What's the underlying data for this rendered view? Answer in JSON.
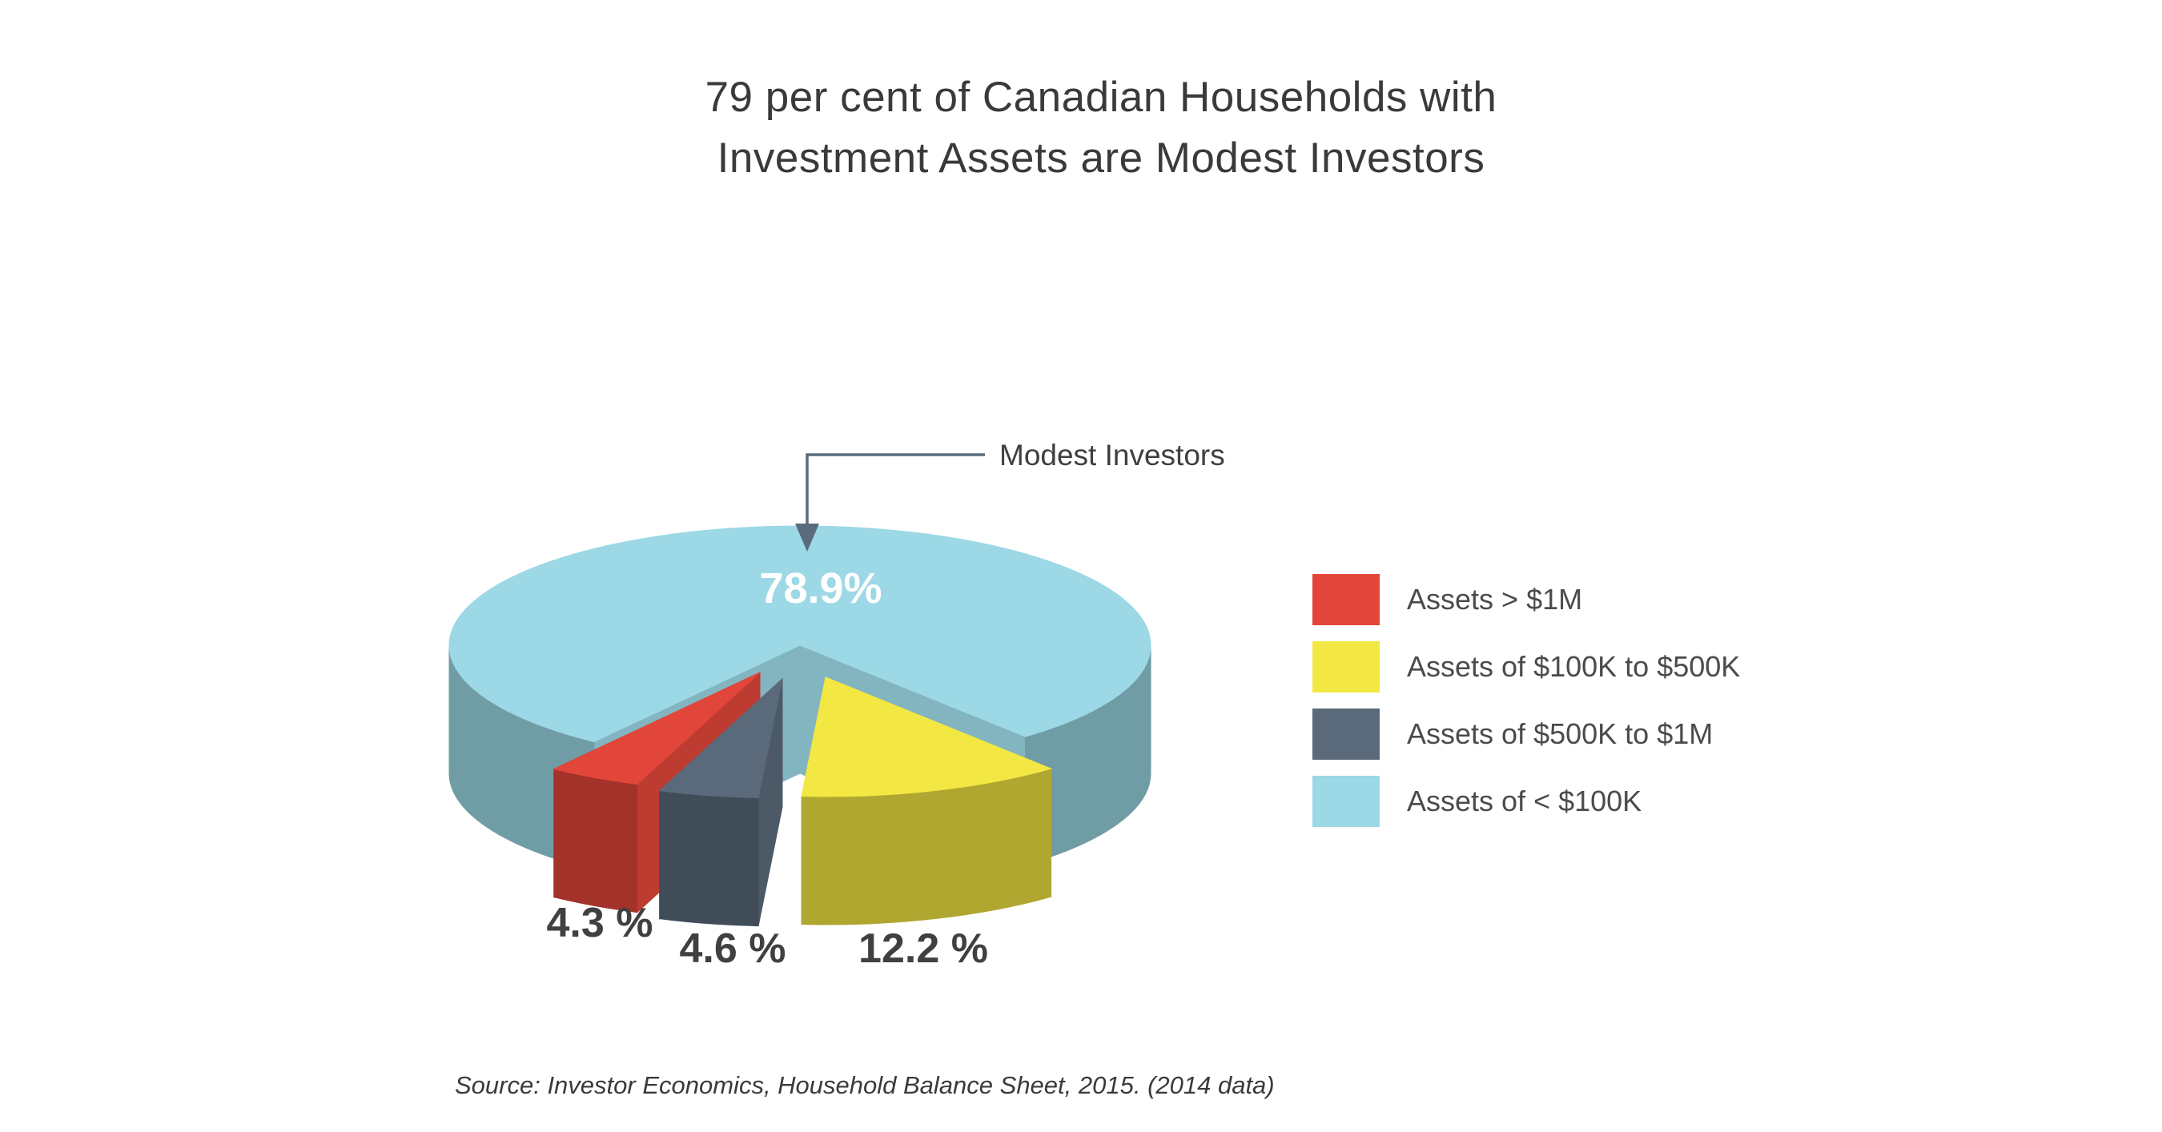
{
  "page": {
    "background": "#ffffff"
  },
  "title": {
    "line1": "79 per cent of Canadian Households with",
    "line2": "Investment Assets are Modest Investors"
  },
  "callout": {
    "label": "Modest Investors"
  },
  "legend": {
    "items": [
      {
        "label": "Assets > $1M",
        "color": "#e2463a"
      },
      {
        "label": "Assets of $100K to $500K",
        "color": "#f3e843"
      },
      {
        "label": "Assets of $500K to $1M",
        "color": "#5a6a7b"
      },
      {
        "label": "Assets of < $100K",
        "color": "#9cd8e5"
      }
    ]
  },
  "source": {
    "text": "Source: Investor Economics, Household Balance Sheet, 2015. (2014 data)"
  },
  "chart_data": {
    "type": "pie",
    "style": "3d-exploded",
    "title": "79 per cent of Canadian Households with Investment Assets are Modest Investors",
    "unit": "%",
    "annotation": "Modest Investors",
    "legend_position": "right",
    "slices": [
      {
        "label": "Assets of < $100K (Modest Investors)",
        "value": 78.9,
        "display": "78.9%",
        "color": "#9cd8e5"
      },
      {
        "label": "Assets > $1M",
        "value": 4.3,
        "display": "4.3 %",
        "color": "#e2463a"
      },
      {
        "label": "Assets of $500K to $1M",
        "value": 4.6,
        "display": "4.6 %",
        "color": "#5a6a7b"
      },
      {
        "label": "Assets of $100K to $500K",
        "value": 12.2,
        "display": "12.2 %",
        "color": "#f3e843"
      }
    ],
    "source": "Source: Investor Economics, Household Balance Sheet, 2015. (2014 data)"
  }
}
